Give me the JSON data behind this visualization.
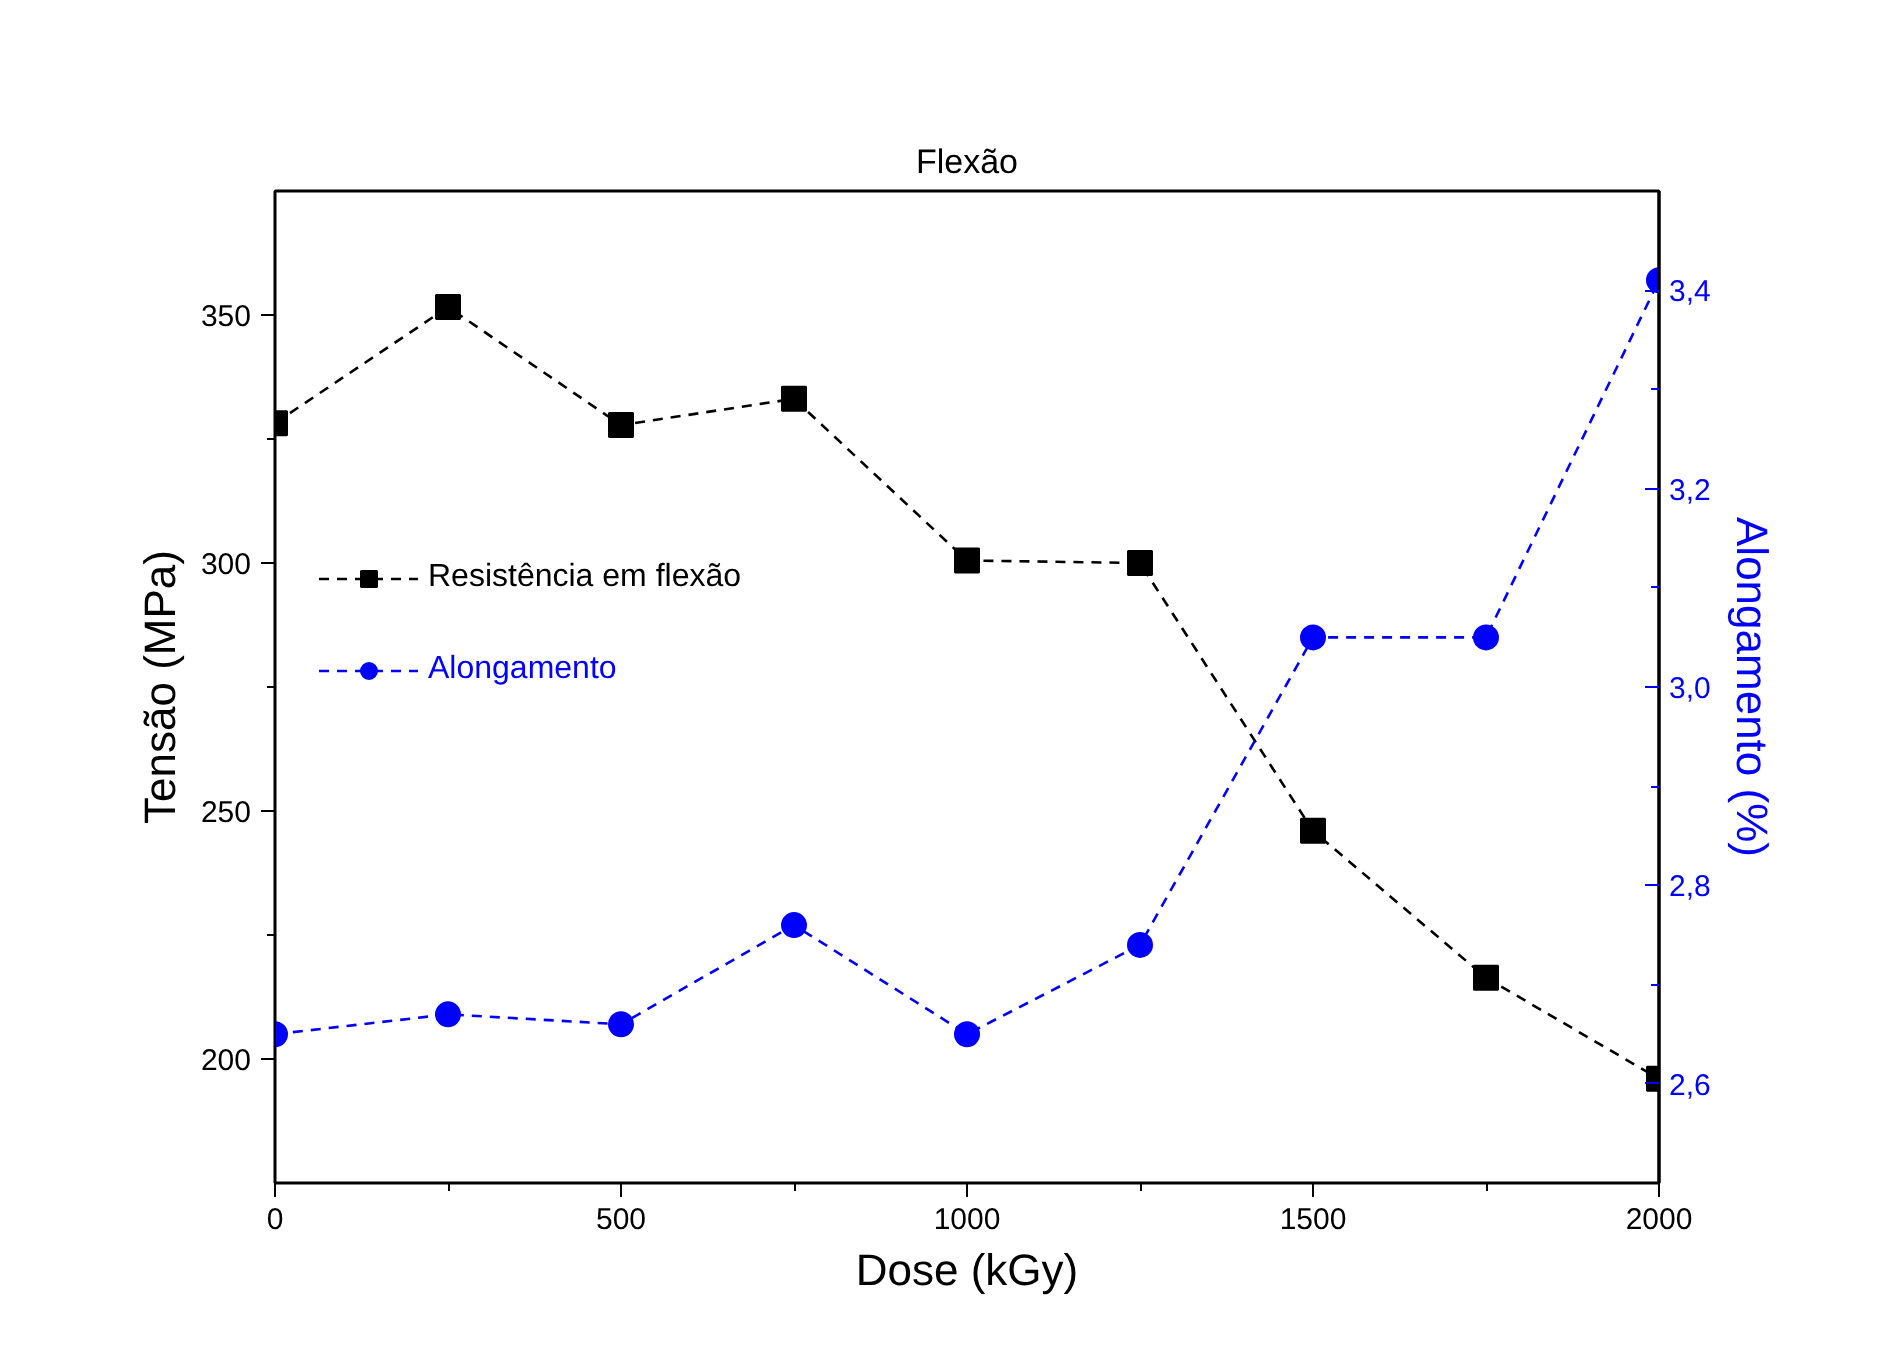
{
  "chart_data": {
    "type": "line",
    "title": "Flexão",
    "xlabel": "Dose (kGy)",
    "ylabel": "Tensão (MPa)",
    "y2label": "Alongamento (%)",
    "x": [
      0,
      250,
      500,
      750,
      1000,
      1250,
      1500,
      1750,
      2000
    ],
    "series": [
      {
        "name": "Resistência em flexão",
        "color": "#000000",
        "marker": "square",
        "values": [
          328.2,
          351.6,
          327.8,
          333.1,
          300.5,
          300.0,
          246.0,
          216.4,
          196.0
        ]
      },
      {
        "name": "Alongamento",
        "color": "#0000ff",
        "marker": "circle",
        "axis": "y2",
        "values": [
          2.65,
          2.67,
          2.66,
          2.76,
          2.65,
          2.74,
          3.05,
          3.05,
          3.41
        ]
      }
    ],
    "xlim": [
      0,
      2000
    ],
    "xticks": [
      0,
      500,
      1000,
      1500,
      2000
    ],
    "ylim": [
      175,
      375
    ],
    "yticks": [
      200,
      250,
      300,
      350
    ],
    "y2lim": [
      2.5,
      3.5
    ],
    "y2ticks": [
      {
        "value": 2.6,
        "label": "2,6"
      },
      {
        "value": 2.8,
        "label": "2,8"
      },
      {
        "value": 3.0,
        "label": "3,0"
      },
      {
        "value": 3.2,
        "label": "3,2"
      },
      {
        "value": 3.4,
        "label": "3,4"
      }
    ],
    "line_style": "dashed",
    "grid": false,
    "legend": "left"
  }
}
